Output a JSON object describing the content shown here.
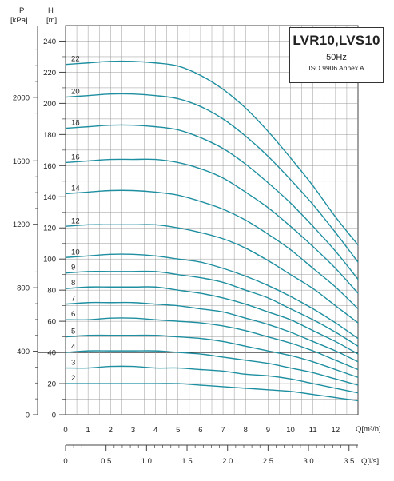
{
  "chart_data": {
    "type": "line",
    "title": "LVR10,LVS10",
    "subtitle": "50Hz",
    "standard": "ISO 9906 Annex A",
    "axis_labels": {
      "left_outer": "P",
      "left_outer_unit": "[kPa]",
      "left_inner": "H",
      "left_inner_unit": "[m]",
      "bottom_primary_unit": "Q[m³/h]",
      "bottom_secondary_unit": "Q[l/s]"
    },
    "h_ticks": [
      "0",
      "20",
      "40",
      "60",
      "80",
      "100",
      "120",
      "140",
      "160",
      "180",
      "200",
      "220",
      "240"
    ],
    "p_ticks": [
      "0",
      "400",
      "800",
      "1200",
      "1600",
      "2000"
    ],
    "q_m3h_ticks": [
      "0",
      "1",
      "2",
      "3",
      "4",
      "5",
      "6",
      "7",
      "8",
      "9",
      "10",
      "11",
      "12"
    ],
    "q_ls_ticks": [
      "0",
      "0.5",
      "1.0",
      "1.5",
      "2.0",
      "2.5",
      "3.0",
      "3.5"
    ],
    "xlim": [
      0,
      13
    ],
    "ylim": [
      0,
      250
    ],
    "grid": true,
    "line_color": "#1e8fa0",
    "series": [
      {
        "name": "22",
        "x": [
          0,
          1,
          2,
          3,
          4,
          5,
          6,
          7,
          8,
          9,
          10,
          11,
          12,
          13
        ],
        "y": [
          225,
          226,
          227,
          227,
          226,
          224,
          218,
          209,
          197,
          182,
          165,
          147,
          127,
          109
        ]
      },
      {
        "name": "20",
        "x": [
          0,
          1,
          2,
          3,
          4,
          5,
          6,
          7,
          8,
          9,
          10,
          11,
          12,
          13
        ],
        "y": [
          204,
          205,
          206,
          206,
          205,
          203,
          198,
          190,
          179,
          166,
          151,
          135,
          117,
          98
        ]
      },
      {
        "name": "18",
        "x": [
          0,
          1,
          2,
          3,
          4,
          5,
          6,
          7,
          8,
          9,
          10,
          11,
          12,
          13
        ],
        "y": [
          184,
          185,
          186,
          186,
          185,
          183,
          178,
          171,
          161,
          149,
          136,
          121,
          105,
          87
        ]
      },
      {
        "name": "16",
        "x": [
          0,
          1,
          2,
          3,
          4,
          5,
          6,
          7,
          8,
          9,
          10,
          11,
          12,
          13
        ],
        "y": [
          162,
          163,
          164,
          164,
          164,
          162,
          158,
          152,
          143,
          133,
          121,
          108,
          94,
          78
        ]
      },
      {
        "name": "14",
        "x": [
          0,
          1,
          2,
          3,
          4,
          5,
          6,
          7,
          8,
          9,
          10,
          11,
          12,
          13
        ],
        "y": [
          142,
          143,
          144,
          144,
          143,
          141,
          137,
          132,
          125,
          116,
          106,
          94,
          82,
          68
        ]
      },
      {
        "name": "12",
        "x": [
          0,
          1,
          2,
          3,
          4,
          5,
          6,
          7,
          8,
          9,
          10,
          11,
          12,
          13
        ],
        "y": [
          121,
          122,
          122,
          122,
          122,
          120,
          117,
          113,
          107,
          99,
          90,
          81,
          70,
          59
        ]
      },
      {
        "name": "10",
        "x": [
          0,
          1,
          2,
          3,
          4,
          5,
          6,
          7,
          8,
          9,
          10,
          11,
          12,
          13
        ],
        "y": [
          101,
          102,
          103,
          103,
          102,
          100,
          98,
          94,
          89,
          83,
          76,
          68,
          59,
          49
        ]
      },
      {
        "name": "9",
        "x": [
          0,
          1,
          2,
          3,
          4,
          5,
          6,
          7,
          8,
          9,
          10,
          11,
          12,
          13
        ],
        "y": [
          91,
          92,
          92,
          92,
          92,
          90,
          88,
          85,
          80,
          75,
          68,
          61,
          53,
          44
        ]
      },
      {
        "name": "8",
        "x": [
          0,
          1,
          2,
          3,
          4,
          5,
          6,
          7,
          8,
          9,
          10,
          11,
          12,
          13
        ],
        "y": [
          81,
          82,
          82,
          82,
          82,
          80,
          78,
          75,
          71,
          66,
          61,
          54,
          47,
          39
        ]
      },
      {
        "name": "7",
        "x": [
          0,
          1,
          2,
          3,
          4,
          5,
          6,
          7,
          8,
          9,
          10,
          11,
          12,
          13
        ],
        "y": [
          71,
          72,
          72,
          72,
          71,
          70,
          68,
          66,
          62,
          58,
          53,
          47,
          41,
          34
        ]
      },
      {
        "name": "6",
        "x": [
          0,
          1,
          2,
          3,
          4,
          5,
          6,
          7,
          8,
          9,
          10,
          11,
          12,
          13
        ],
        "y": [
          61,
          61,
          62,
          62,
          61,
          60,
          59,
          57,
          54,
          50,
          46,
          41,
          35,
          29
        ]
      },
      {
        "name": "5",
        "x": [
          0,
          1,
          2,
          3,
          4,
          5,
          6,
          7,
          8,
          9,
          10,
          11,
          12,
          13
        ],
        "y": [
          50,
          51,
          51,
          51,
          51,
          50,
          49,
          47,
          44,
          41,
          38,
          34,
          29,
          24
        ]
      },
      {
        "name": "4",
        "x": [
          0,
          1,
          2,
          3,
          4,
          5,
          6,
          7,
          8,
          9,
          10,
          11,
          12,
          13
        ],
        "y": [
          40,
          41,
          41,
          41,
          41,
          40,
          39,
          37,
          35,
          33,
          30,
          27,
          23,
          19
        ]
      },
      {
        "name": "3",
        "x": [
          0,
          1,
          2,
          3,
          4,
          5,
          6,
          7,
          8,
          9,
          10,
          11,
          12,
          13
        ],
        "y": [
          30,
          30,
          31,
          31,
          30,
          30,
          29,
          28,
          26,
          25,
          23,
          20,
          17,
          14
        ]
      },
      {
        "name": "2",
        "x": [
          0,
          1,
          2,
          3,
          4,
          5,
          6,
          7,
          8,
          9,
          10,
          11,
          12,
          13
        ],
        "y": [
          20,
          20,
          20,
          20,
          20,
          20,
          19,
          18,
          17,
          16,
          15,
          13,
          11,
          9
        ]
      }
    ]
  }
}
